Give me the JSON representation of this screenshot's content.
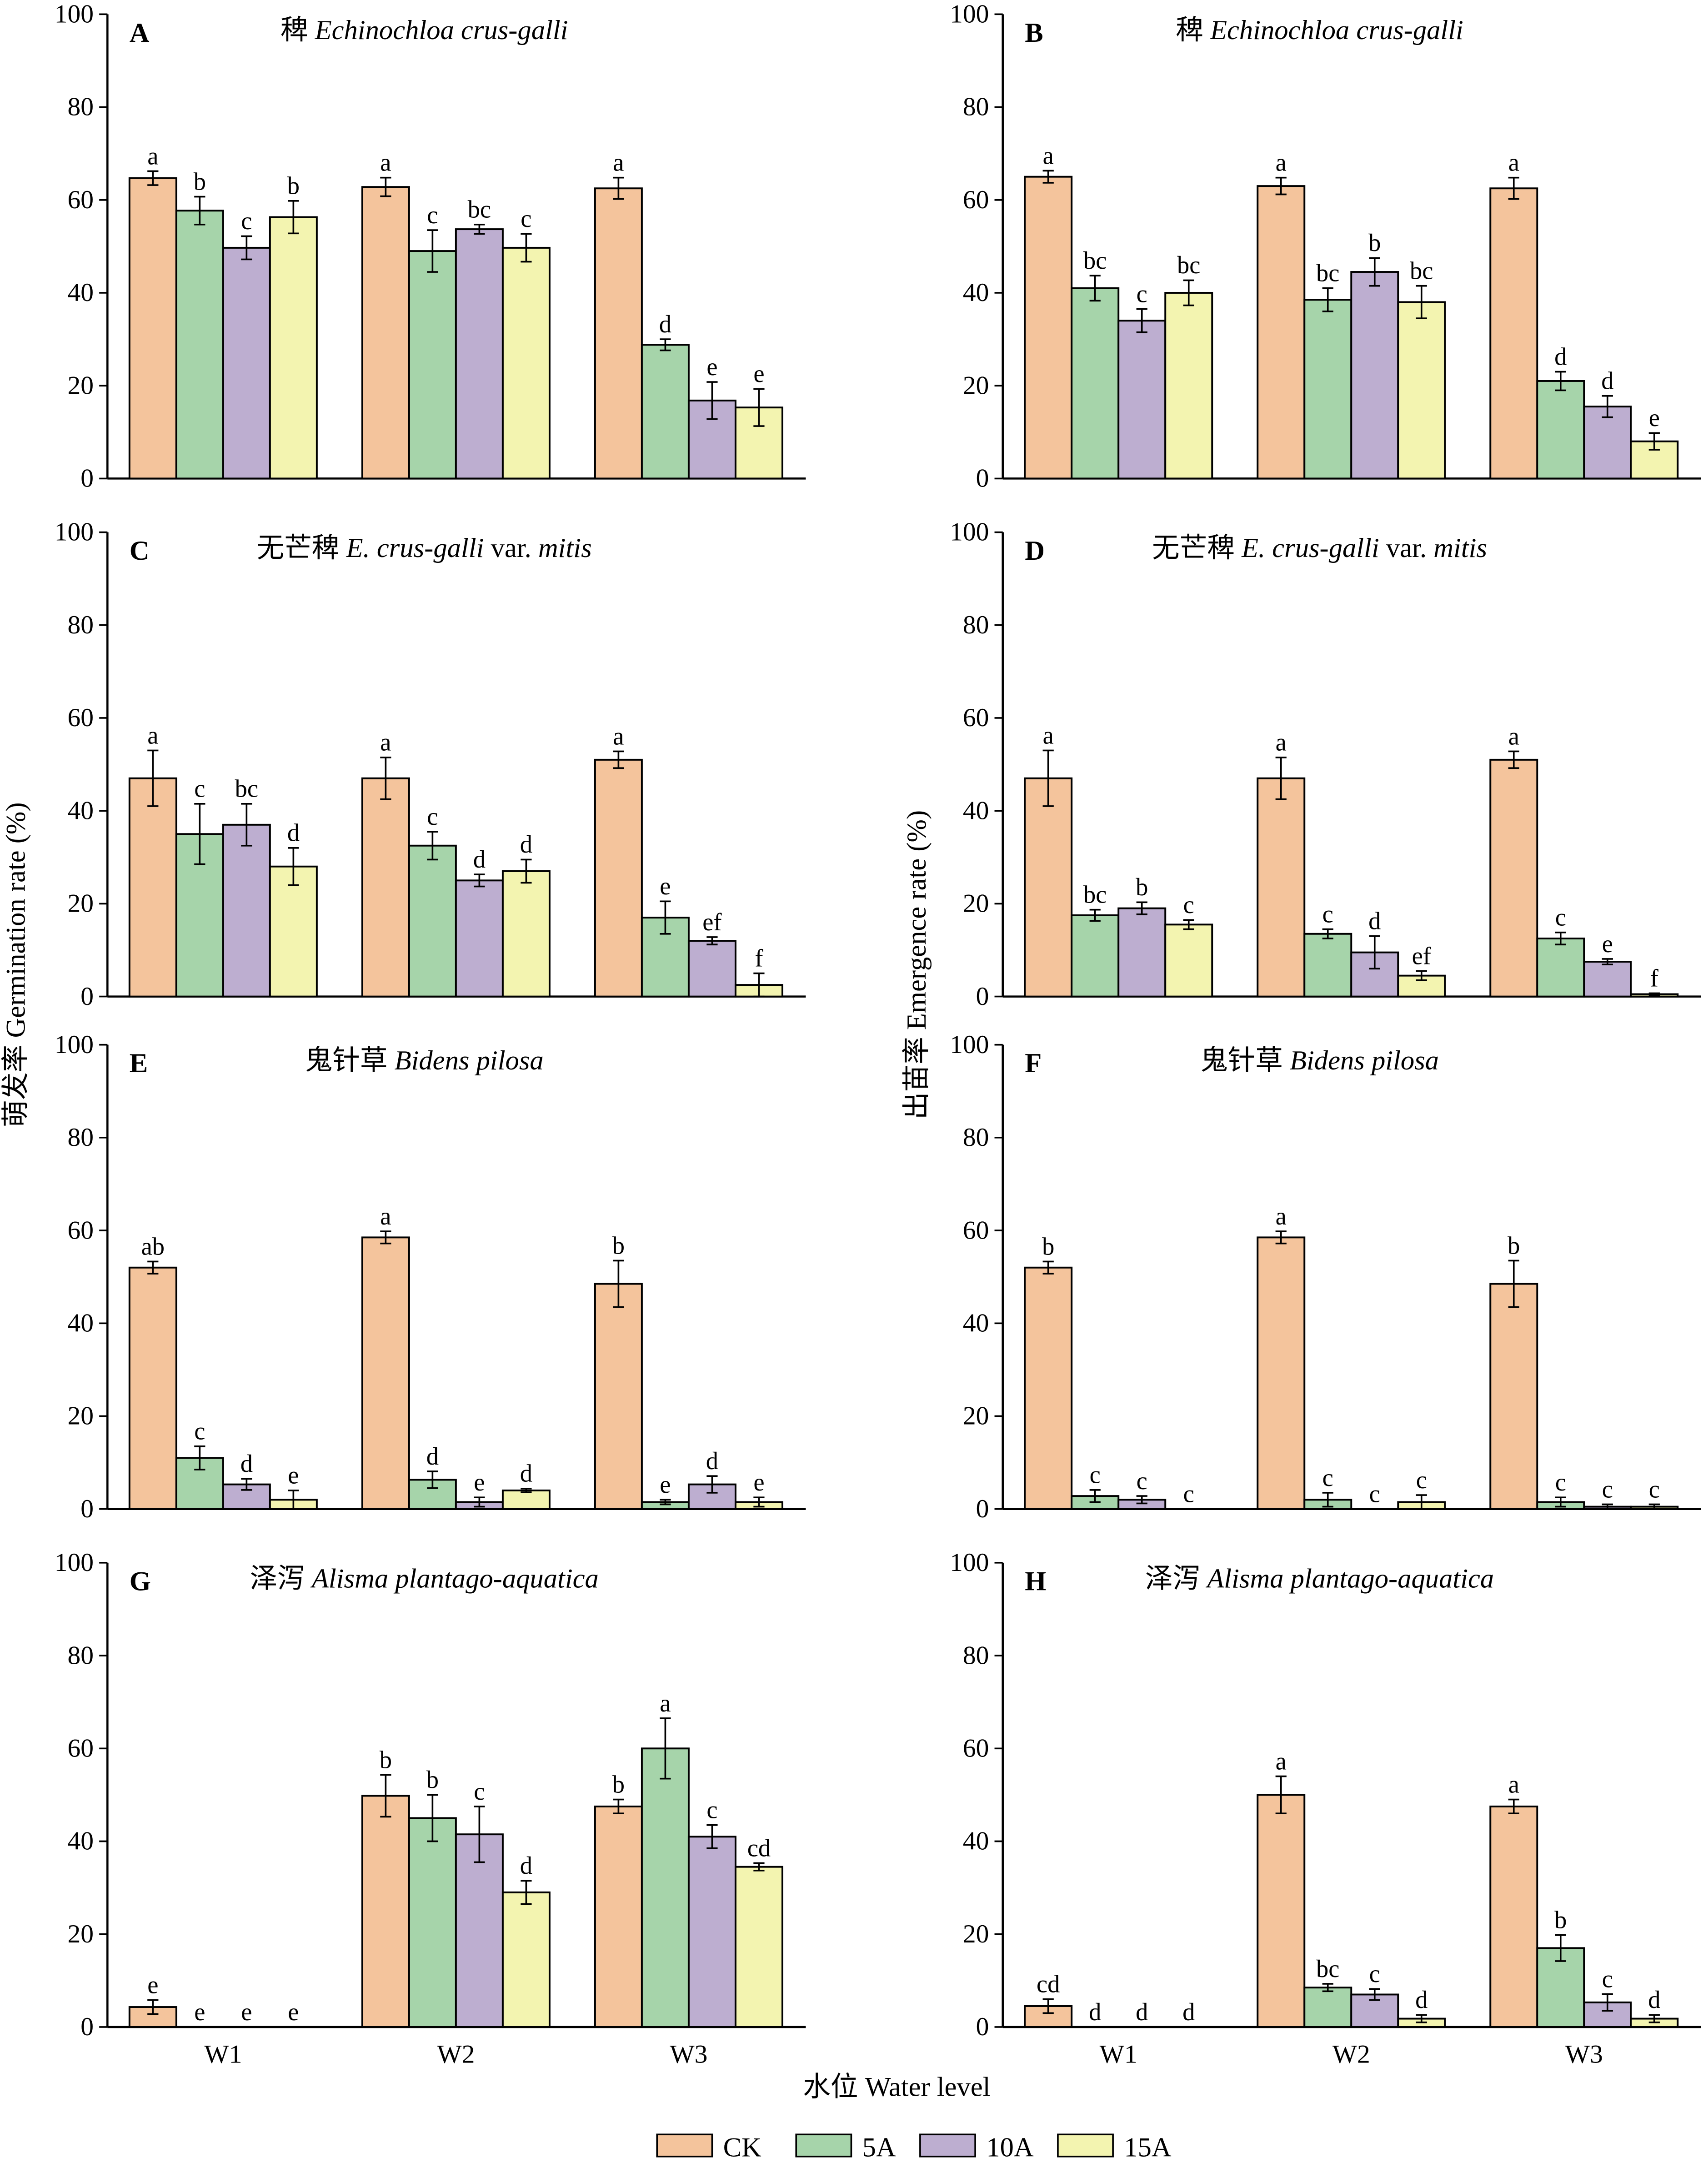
{
  "colors": {
    "CK": "#f4c49c",
    "5A": "#a6d4aa",
    "10A": "#bdaed0",
    "15A": "#f3f4b0"
  },
  "legend": [
    "CK",
    "5A",
    "10A",
    "15A"
  ],
  "ylabel_left": "萌发率 Germination rate (%)",
  "ylabel_right": "出苗率 Emergence rate (%)",
  "xlabel": "水位 Water level",
  "chart_data": [
    {
      "panel": "A",
      "type": "bar",
      "title": [
        {
          "t": "稗 ",
          "i": false
        },
        {
          "t": "Echinochloa crus-galli",
          "i": true
        }
      ],
      "categories": [
        "W1",
        "W2",
        "W3"
      ],
      "ylim": [
        0,
        100
      ],
      "yticks": [
        0,
        20,
        40,
        60,
        80,
        100
      ],
      "series": [
        {
          "name": "CK",
          "values": [
            64.7,
            62.8,
            62.5
          ],
          "errors": [
            1.5,
            2,
            2.3
          ],
          "letters": [
            "a",
            "a",
            "a"
          ]
        },
        {
          "name": "5A",
          "values": [
            57.7,
            49,
            28.8
          ],
          "errors": [
            3,
            4.5,
            1.2
          ],
          "letters": [
            "b",
            "c",
            "d"
          ]
        },
        {
          "name": "10A",
          "values": [
            49.7,
            53.7,
            16.8
          ],
          "errors": [
            2.5,
            1,
            4
          ],
          "letters": [
            "c",
            "bc",
            "e"
          ]
        },
        {
          "name": "15A",
          "values": [
            56.3,
            49.7,
            15.3
          ],
          "errors": [
            3.5,
            3,
            4
          ],
          "letters": [
            "b",
            "c",
            "e"
          ]
        }
      ]
    },
    {
      "panel": "B",
      "type": "bar",
      "title": [
        {
          "t": "稗 ",
          "i": false
        },
        {
          "t": "Echinochloa crus-galli",
          "i": true
        }
      ],
      "categories": [
        "W1",
        "W2",
        "W3"
      ],
      "ylim": [
        0,
        100
      ],
      "yticks": [
        0,
        20,
        40,
        60,
        80,
        100
      ],
      "series": [
        {
          "name": "CK",
          "values": [
            65,
            63,
            62.5
          ],
          "errors": [
            1.3,
            1.8,
            2.3
          ],
          "letters": [
            "a",
            "a",
            "a"
          ]
        },
        {
          "name": "5A",
          "values": [
            41,
            38.5,
            21
          ],
          "errors": [
            2.7,
            2.5,
            2
          ],
          "letters": [
            "bc",
            "bc",
            "d"
          ]
        },
        {
          "name": "10A",
          "values": [
            34,
            44.5,
            15.5
          ],
          "errors": [
            2.5,
            3,
            2.3
          ],
          "letters": [
            "c",
            "b",
            "d"
          ]
        },
        {
          "name": "15A",
          "values": [
            40,
            38,
            8
          ],
          "errors": [
            2.7,
            3.5,
            1.8
          ],
          "letters": [
            "bc",
            "bc",
            "e"
          ]
        }
      ]
    },
    {
      "panel": "C",
      "type": "bar",
      "title": [
        {
          "t": "无芒稗 ",
          "i": false
        },
        {
          "t": "E. crus-galli",
          "i": true
        },
        {
          "t": " var. ",
          "i": false
        },
        {
          "t": "mitis",
          "i": true
        }
      ],
      "categories": [
        "W1",
        "W2",
        "W3"
      ],
      "ylim": [
        0,
        100
      ],
      "yticks": [
        0,
        20,
        40,
        60,
        80,
        100
      ],
      "series": [
        {
          "name": "CK",
          "values": [
            47,
            47,
            51
          ],
          "errors": [
            6,
            4.5,
            1.8
          ],
          "letters": [
            "a",
            "a",
            "a"
          ]
        },
        {
          "name": "5A",
          "values": [
            35,
            32.5,
            17
          ],
          "errors": [
            6.5,
            3,
            3.5
          ],
          "letters": [
            "c",
            "c",
            "e"
          ]
        },
        {
          "name": "10A",
          "values": [
            37,
            25,
            12
          ],
          "errors": [
            4.5,
            1.3,
            0.8
          ],
          "letters": [
            "bc",
            "d",
            "ef"
          ]
        },
        {
          "name": "15A",
          "values": [
            28,
            27,
            2.5
          ],
          "errors": [
            4,
            2.5,
            2.5
          ],
          "letters": [
            "d",
            "d",
            "f"
          ]
        }
      ]
    },
    {
      "panel": "D",
      "type": "bar",
      "title": [
        {
          "t": "无芒稗 ",
          "i": false
        },
        {
          "t": "E. crus-galli",
          "i": true
        },
        {
          "t": " var. ",
          "i": false
        },
        {
          "t": "mitis",
          "i": true
        }
      ],
      "categories": [
        "W1",
        "W2",
        "W3"
      ],
      "ylim": [
        0,
        100
      ],
      "yticks": [
        0,
        20,
        40,
        60,
        80,
        100
      ],
      "series": [
        {
          "name": "CK",
          "values": [
            47,
            47,
            51
          ],
          "errors": [
            6,
            4.5,
            1.8
          ],
          "letters": [
            "a",
            "a",
            "a"
          ]
        },
        {
          "name": "5A",
          "values": [
            17.5,
            13.5,
            12.5
          ],
          "errors": [
            1.2,
            1,
            1.3
          ],
          "letters": [
            "bc",
            "c",
            "c"
          ]
        },
        {
          "name": "10A",
          "values": [
            19,
            9.5,
            7.5
          ],
          "errors": [
            1.3,
            3.5,
            0.6
          ],
          "letters": [
            "b",
            "d",
            "e"
          ]
        },
        {
          "name": "15A",
          "values": [
            15.5,
            4.5,
            0.5
          ],
          "errors": [
            1,
            1,
            0.2
          ],
          "letters": [
            "c",
            "ef",
            "f"
          ]
        }
      ]
    },
    {
      "panel": "E",
      "type": "bar",
      "title": [
        {
          "t": "鬼针草 ",
          "i": false
        },
        {
          "t": "Bidens pilosa",
          "i": true
        }
      ],
      "categories": [
        "W1",
        "W2",
        "W3"
      ],
      "ylim": [
        0,
        100
      ],
      "yticks": [
        0,
        20,
        40,
        60,
        80,
        100
      ],
      "series": [
        {
          "name": "CK",
          "values": [
            52,
            58.5,
            48.5
          ],
          "errors": [
            1.3,
            1.3,
            5
          ],
          "letters": [
            "ab",
            "a",
            "b"
          ]
        },
        {
          "name": "5A",
          "values": [
            11,
            6.3,
            1.5
          ],
          "errors": [
            2.5,
            1.8,
            0.5
          ],
          "letters": [
            "c",
            "d",
            "e"
          ]
        },
        {
          "name": "10A",
          "values": [
            5.3,
            1.5,
            5.3
          ],
          "errors": [
            1.2,
            1,
            1.8
          ],
          "letters": [
            "d",
            "e",
            "d"
          ]
        },
        {
          "name": "15A",
          "values": [
            2,
            4,
            1.5
          ],
          "errors": [
            2,
            0.4,
            1
          ],
          "letters": [
            "e",
            "d",
            "e"
          ]
        }
      ]
    },
    {
      "panel": "F",
      "type": "bar",
      "title": [
        {
          "t": "鬼针草 ",
          "i": false
        },
        {
          "t": "Bidens pilosa",
          "i": true
        }
      ],
      "categories": [
        "W1",
        "W2",
        "W3"
      ],
      "ylim": [
        0,
        100
      ],
      "yticks": [
        0,
        20,
        40,
        60,
        80,
        100
      ],
      "series": [
        {
          "name": "CK",
          "values": [
            52,
            58.5,
            48.5
          ],
          "errors": [
            1.3,
            1.3,
            5
          ],
          "letters": [
            "b",
            "a",
            "b"
          ]
        },
        {
          "name": "5A",
          "values": [
            2.8,
            2,
            1.5
          ],
          "errors": [
            1.3,
            1.5,
            1
          ],
          "letters": [
            "c",
            "c",
            "c"
          ]
        },
        {
          "name": "10A",
          "values": [
            2,
            0,
            0.5
          ],
          "errors": [
            0.8,
            0,
            0.5
          ],
          "letters": [
            "c",
            "c",
            "c"
          ]
        },
        {
          "name": "15A",
          "values": [
            0,
            1.5,
            0.5
          ],
          "errors": [
            0,
            1.5,
            0.5
          ],
          "letters": [
            "c",
            "c",
            "c"
          ]
        }
      ]
    },
    {
      "panel": "G",
      "type": "bar",
      "title": [
        {
          "t": "泽泻 ",
          "i": false
        },
        {
          "t": "Alisma plantago-aquatica",
          "i": true
        }
      ],
      "categories": [
        "W1",
        "W2",
        "W3"
      ],
      "ylim": [
        0,
        100
      ],
      "yticks": [
        0,
        20,
        40,
        60,
        80,
        100
      ],
      "series": [
        {
          "name": "CK",
          "values": [
            4.3,
            49.8,
            47.5
          ],
          "errors": [
            1.5,
            4.5,
            1.5
          ],
          "letters": [
            "e",
            "b",
            "b"
          ]
        },
        {
          "name": "5A",
          "values": [
            0,
            45,
            60
          ],
          "errors": [
            0,
            5,
            6.5
          ],
          "letters": [
            "e",
            "b",
            "a"
          ]
        },
        {
          "name": "10A",
          "values": [
            0,
            41.5,
            41
          ],
          "errors": [
            0,
            6,
            2.5
          ],
          "letters": [
            "e",
            "c",
            "c"
          ]
        },
        {
          "name": "15A",
          "values": [
            0,
            29,
            34.5
          ],
          "errors": [
            0,
            2.5,
            0.8
          ],
          "letters": [
            "e",
            "d",
            "cd"
          ]
        }
      ]
    },
    {
      "panel": "H",
      "type": "bar",
      "title": [
        {
          "t": "泽泻 ",
          "i": false
        },
        {
          "t": "Alisma plantago-aquatica",
          "i": true
        }
      ],
      "categories": [
        "W1",
        "W2",
        "W3"
      ],
      "ylim": [
        0,
        100
      ],
      "yticks": [
        0,
        20,
        40,
        60,
        80,
        100
      ],
      "series": [
        {
          "name": "CK",
          "values": [
            4.5,
            50,
            47.5
          ],
          "errors": [
            1.5,
            4,
            1.5
          ],
          "letters": [
            "cd",
            "a",
            "a"
          ]
        },
        {
          "name": "5A",
          "values": [
            0,
            8.5,
            17
          ],
          "errors": [
            0,
            0.8,
            2.8
          ],
          "letters": [
            "d",
            "bc",
            "b"
          ]
        },
        {
          "name": "10A",
          "values": [
            0,
            7,
            5.3
          ],
          "errors": [
            0,
            1.2,
            1.8
          ],
          "letters": [
            "d",
            "c",
            "c"
          ]
        },
        {
          "name": "15A",
          "values": [
            0,
            1.8,
            1.8
          ],
          "errors": [
            0,
            0.8,
            0.8
          ],
          "letters": [
            "d",
            "d",
            "d"
          ]
        }
      ]
    }
  ]
}
